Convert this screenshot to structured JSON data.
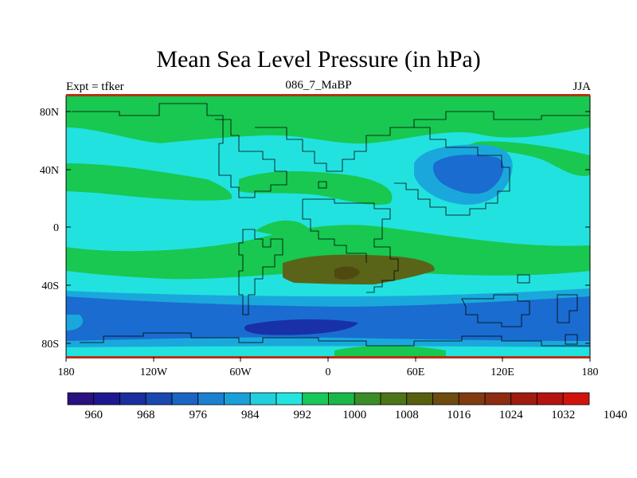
{
  "title": "Mean Sea Level Pressure (in hPa)",
  "subtitle_left": "Expt = tfker",
  "subtitle_center": "086_7_MaBP",
  "subtitle_right": "JJA",
  "lat_labels": [
    "80N",
    "40N",
    "0",
    "40S",
    "80S"
  ],
  "lon_labels": [
    "180",
    "120W",
    "60W",
    "0",
    "60E",
    "120E",
    "180"
  ],
  "colorbar": {
    "labels": [
      "960",
      "968",
      "976",
      "984",
      "992",
      "1000",
      "1008",
      "1016",
      "1024",
      "1032",
      "1040"
    ],
    "colors": [
      "#2a1080",
      "#1e1890",
      "#1a2ea0",
      "#1848b0",
      "#1a64c4",
      "#1c80d0",
      "#1aa0d8",
      "#22d0dc",
      "#24e4e0",
      "#18c85a",
      "#1ab848",
      "#3c8c28",
      "#4e7418",
      "#56600e",
      "#6c4c10",
      "#803c10",
      "#8c2c10",
      "#a01c10",
      "#b41410",
      "#d0140c"
    ]
  },
  "colors": {
    "ocean_cyan": "#22e2e0",
    "green": "#18c850",
    "olive": "#5a6418",
    "blue": "#1a6cd0",
    "light_blue": "#1aa8dc",
    "dark_blue": "#1830a8",
    "border": "#b43214"
  }
}
